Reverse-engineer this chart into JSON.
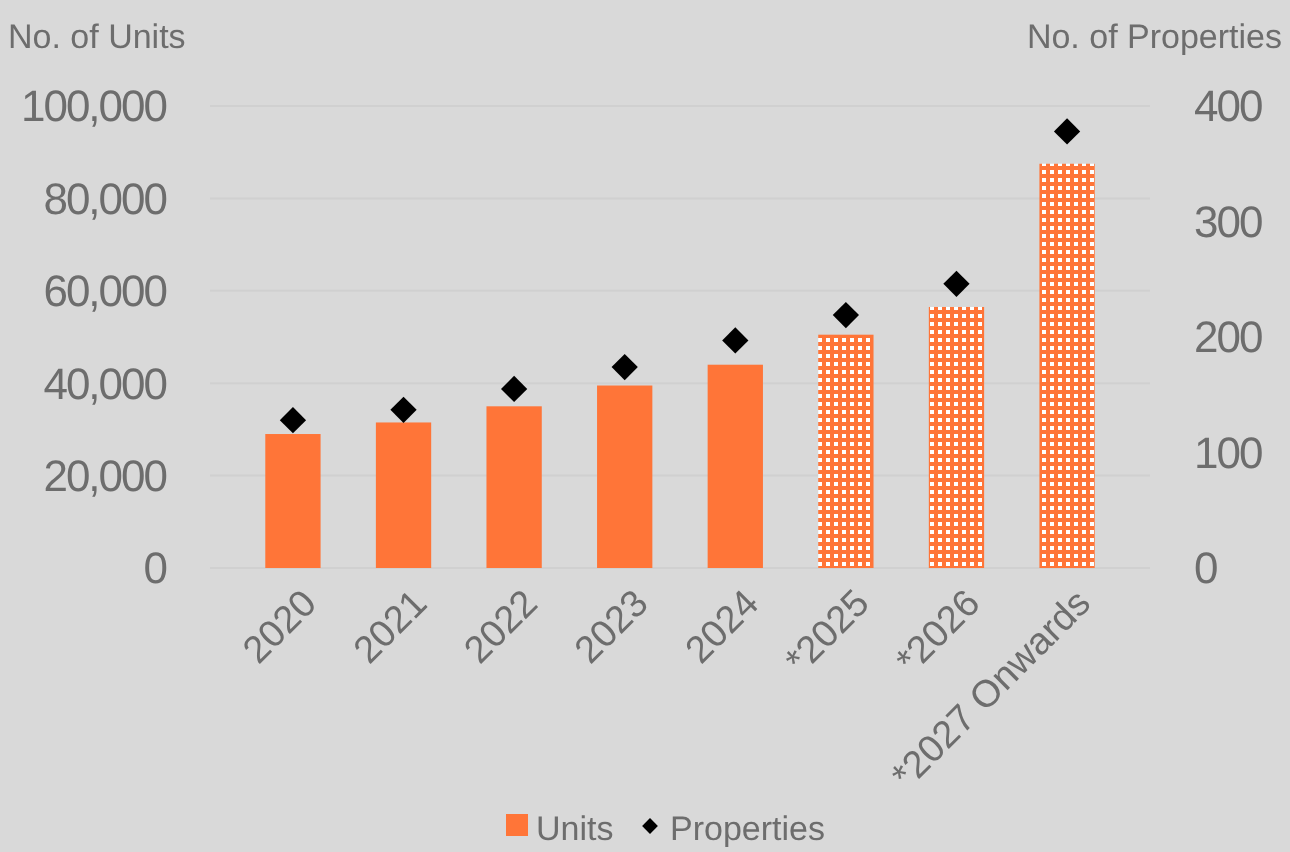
{
  "chart_data": {
    "type": "bar",
    "ylabel": "No. of Units",
    "y2label": "No. of Properties",
    "categories": [
      "2020",
      "2021",
      "2022",
      "2023",
      "2024",
      "*2025",
      "*2026",
      "*2027 Onwards"
    ],
    "series": [
      {
        "name": "Units",
        "color": "#ff7538",
        "colors": [
          "#ff7538",
          "#ff7538",
          "#ff7538",
          "#ff7538",
          "#ff7538",
          "#ffffff",
          "#ffffff",
          "#ffffff"
        ],
        "values": [
          29000,
          31500,
          35000,
          39500,
          44000,
          50500,
          56500,
          87500
        ]
      },
      {
        "name": "Properties",
        "type": "scatter",
        "axis": "y2",
        "color": "#000000",
        "marker": "diamond",
        "values": [
          128,
          137,
          155,
          174,
          197,
          219,
          246,
          378
        ]
      }
    ],
    "ylim": [
      0,
      100000
    ],
    "yticks": [
      {
        "value": 0,
        "label": "0"
      },
      {
        "value": 20000,
        "label": "20,000"
      },
      {
        "value": 40000,
        "label": "40,000"
      },
      {
        "value": 60000,
        "label": "60,000"
      },
      {
        "value": 80000,
        "label": "80,000"
      },
      {
        "value": 100000,
        "label": "100,000"
      }
    ],
    "y2lim": [
      0,
      400
    ],
    "y2ticks": [
      0,
      100,
      200,
      300,
      400
    ],
    "grid": "y",
    "legend": "bottom"
  }
}
